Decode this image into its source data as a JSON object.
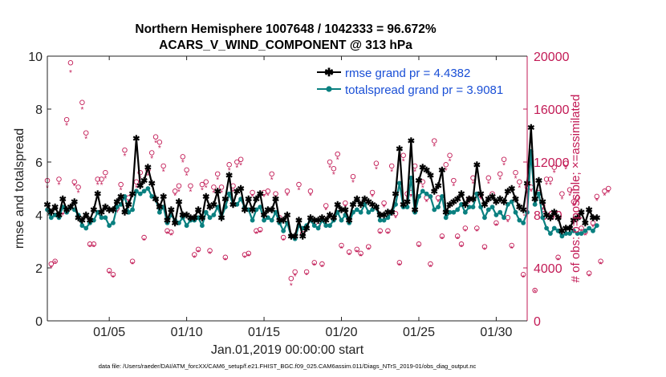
{
  "title": {
    "line1": "Northern Hemisphere 1007648 / 1042333 = 96.672%",
    "line2": "ACARS_V_WIND_COMPONENT @ 313 hPa"
  },
  "footer": "data file: /Users/raeder/DAI/ATM_forcXX/CAM6_setup/f.e21.FHIST_BGC.f09_025.CAM6assim.011/Diags_NTrS_2019-01/obs_diag_output.nc",
  "colors": {
    "rmse": "#000000",
    "spread": "#0a8080",
    "obs": "#c21a55",
    "legend_text": "#1a4fd6"
  },
  "chart_data": {
    "type": "line",
    "xlabel": "Jan.01,2019 00:00:00 start",
    "ylabel": "rmse and totalspread",
    "ylabel_right": "# of obs: o=possible; ×=assimilated",
    "x_range_days": [
      1.0,
      32.0
    ],
    "xtick_values": [
      5,
      10,
      15,
      20,
      25,
      30
    ],
    "xtick_labels": [
      "01/05",
      "01/10",
      "01/15",
      "01/20",
      "01/25",
      "01/30"
    ],
    "ylim_left": [
      0,
      10
    ],
    "yticks_left": [
      "0",
      "2",
      "4",
      "6",
      "8",
      "10"
    ],
    "ylim_right": [
      0,
      20000
    ],
    "yticks_right": [
      "0",
      "4000",
      "8000",
      "12000",
      "16000",
      "20000"
    ],
    "legend_position": "top-right",
    "legend": [
      "rmse grand pr = 4.4382",
      "totalspread grand pr = 3.9081"
    ],
    "time_step_days": 0.25,
    "time_start_day": 1.0,
    "series": [
      {
        "name": "rmse",
        "marker": "*",
        "values": [
          4.4,
          4.1,
          4.3,
          4.0,
          4.6,
          4.2,
          4.3,
          4.5,
          3.9,
          3.8,
          4.0,
          3.8,
          4.2,
          4.8,
          4.1,
          4.3,
          4.2,
          4.2,
          4.5,
          4.7,
          4.1,
          4.4,
          4.8,
          6.9,
          5.1,
          5.3,
          5.8,
          5.2,
          4.6,
          4.3,
          4.7,
          3.8,
          4.2,
          3.7,
          4.5,
          4.0,
          4.0,
          3.9,
          3.9,
          4.2,
          3.9,
          4.7,
          4.3,
          4.4,
          4.9,
          3.9,
          4.6,
          5.5,
          4.4,
          4.9,
          5.0,
          4.2,
          4.6,
          4.2,
          4.6,
          4.8,
          4.0,
          4.2,
          4.2,
          4.6,
          3.8,
          3.8,
          4.0,
          3.2,
          3.2,
          3.8,
          3.2,
          3.5,
          3.9,
          3.8,
          3.8,
          3.9,
          3.8,
          4.0,
          3.9,
          4.4,
          4.2,
          4.2,
          3.8,
          4.4,
          4.6,
          4.4,
          4.6,
          4.5,
          4.4,
          4.3,
          4.0,
          4.0,
          4.1,
          4.1,
          4.8,
          6.5,
          4.4,
          4.5,
          6.8,
          4.2,
          5.3,
          5.8,
          5.7,
          5.5,
          4.9,
          5.1,
          5.7,
          4.1,
          4.4,
          4.5,
          4.6,
          4.8,
          4.4,
          4.6,
          4.6,
          5.9,
          4.8,
          4.4,
          4.6,
          4.7,
          4.5,
          4.6,
          4.5,
          4.9,
          5.0,
          4.6,
          4.3,
          4.2,
          5.2,
          7.3,
          4.6,
          5.3,
          4.5,
          4.0,
          3.9,
          4.1,
          3.9,
          3.4,
          3.5,
          3.5,
          3.8,
          3.9,
          4.1,
          3.7,
          4.2,
          3.9,
          3.9
        ]
      },
      {
        "name": "totalspread",
        "marker": "o",
        "values": [
          4.2,
          3.9,
          4.0,
          3.9,
          4.3,
          4.1,
          4.3,
          4.2,
          4.0,
          3.6,
          3.5,
          3.7,
          3.8,
          4.1,
          3.9,
          3.9,
          3.6,
          3.7,
          4.3,
          4.4,
          4.7,
          4.1,
          4.2,
          4.9,
          4.8,
          4.9,
          5.0,
          4.7,
          4.6,
          4.1,
          4.3,
          3.7,
          4.0,
          3.8,
          3.7,
          3.9,
          3.6,
          3.8,
          3.8,
          3.9,
          3.6,
          4.1,
          3.9,
          4.0,
          4.3,
          3.9,
          4.3,
          4.8,
          4.4,
          4.4,
          4.6,
          4.3,
          4.2,
          3.8,
          4.2,
          4.3,
          3.8,
          3.9,
          3.8,
          4.1,
          3.7,
          3.4,
          3.7,
          3.2,
          3.1,
          3.6,
          3.5,
          3.6,
          3.8,
          3.6,
          3.5,
          3.8,
          3.6,
          3.6,
          3.8,
          4.1,
          3.8,
          4.0,
          3.7,
          4.1,
          4.2,
          4.1,
          4.4,
          4.1,
          4.2,
          4.3,
          3.8,
          3.8,
          3.9,
          4.1,
          4.4,
          5.2,
          4.3,
          4.3,
          5.4,
          4.1,
          4.7,
          4.9,
          4.8,
          4.7,
          4.2,
          4.3,
          4.7,
          3.9,
          4.1,
          4.1,
          4.2,
          4.4,
          4.1,
          4.3,
          4.3,
          4.8,
          4.3,
          3.9,
          4.2,
          4.3,
          4.0,
          4.1,
          3.9,
          4.4,
          4.5,
          4.1,
          3.8,
          3.7,
          4.1,
          6.4,
          4.4,
          4.8,
          3.9,
          3.5,
          3.3,
          3.5,
          3.4,
          3.2,
          3.3,
          3.3,
          3.4,
          3.3,
          3.3,
          3.4,
          3.5,
          3.4,
          3.6
        ]
      },
      {
        "name": "obs_possible",
        "marker": "o",
        "axis": "right",
        "values": [
          10600,
          4300,
          4500,
          10700,
          8300,
          15200,
          19500,
          10500,
          10100,
          16500,
          14200,
          5800,
          5800,
          10700,
          10700,
          11200,
          3800,
          3500,
          8500,
          10300,
          12900,
          9300,
          4500,
          10500,
          11200,
          6300,
          11400,
          12700,
          13900,
          13500,
          11700,
          6800,
          6700,
          9800,
          10200,
          12400,
          11400,
          10200,
          5000,
          5400,
          10300,
          10500,
          5300,
          10100,
          11100,
          10100,
          4800,
          11800,
          10200,
          12000,
          12200,
          5000,
          5100,
          9700,
          6800,
          6900,
          9700,
          9800,
          11100,
          9600,
          7800,
          6300,
          9800,
          3200,
          3700,
          10300,
          6600,
          3700,
          9800,
          4400,
          7200,
          4300,
          8700,
          12000,
          11500,
          12600,
          5700,
          8900,
          5200,
          10900,
          5400,
          5100,
          9000,
          5600,
          9700,
          11900,
          6800,
          8900,
          6800,
          11700,
          8100,
          4400,
          12500,
          9600,
          9700,
          11700,
          5800,
          10500,
          9300,
          4300,
          13600,
          9300,
          6400,
          11800,
          12500,
          10600,
          6400,
          5800,
          7000,
          9200,
          10800,
          7000,
          9500,
          5600,
          10800,
          9600,
          7400,
          11100,
          12200,
          7800,
          5700,
          11200,
          10500,
          3500,
          10100,
          10100,
          2300,
          9700,
          8700,
          10700,
          10700,
          11600,
          4800,
          9600,
          11900,
          9900,
          9000,
          9300,
          7000,
          6700,
          3600,
          7400,
          9400,
          4500,
          9800,
          10000
        ]
      },
      {
        "name": "obs_assimilated",
        "marker": "*",
        "axis": "right",
        "values": [
          10100,
          4000,
          4400,
          10300,
          8000,
          14800,
          18800,
          10200,
          9700,
          16000,
          13800,
          5600,
          5600,
          10300,
          10300,
          10800,
          3600,
          3300,
          8200,
          9900,
          12500,
          9000,
          4300,
          10100,
          10800,
          6100,
          11000,
          12300,
          13500,
          13100,
          11300,
          6600,
          6500,
          9500,
          9800,
          12000,
          11000,
          9800,
          4800,
          5200,
          9900,
          10100,
          5100,
          9700,
          10700,
          9700,
          4600,
          11400,
          9800,
          11600,
          11800,
          4800,
          4900,
          9400,
          6600,
          6700,
          9400,
          9500,
          10700,
          9300,
          7500,
          6100,
          9500,
          2700,
          3400,
          9900,
          6400,
          3500,
          9500,
          4200,
          7000,
          4100,
          8400,
          11600,
          11100,
          12200,
          5500,
          8600,
          5000,
          10500,
          5200,
          4900,
          8700,
          5400,
          9400,
          11500,
          6600,
          8600,
          6600,
          11300,
          7800,
          4200,
          12100,
          9300,
          9400,
          11300,
          5600,
          10100,
          9000,
          4100,
          13200,
          9000,
          6200,
          11400,
          12100,
          10200,
          6200,
          5600,
          6800,
          8900,
          10400,
          6800,
          9200,
          5400,
          10400,
          9300,
          7200,
          10700,
          11800,
          7500,
          5500,
          10800,
          10100,
          3300,
          9700,
          9800,
          2200,
          9300,
          8400,
          10300,
          10300,
          11200,
          4600,
          9200,
          11500,
          9500,
          8700,
          9000,
          6800,
          6500,
          3400,
          7100,
          9100,
          4300,
          9500,
          9700
        ]
      }
    ]
  }
}
